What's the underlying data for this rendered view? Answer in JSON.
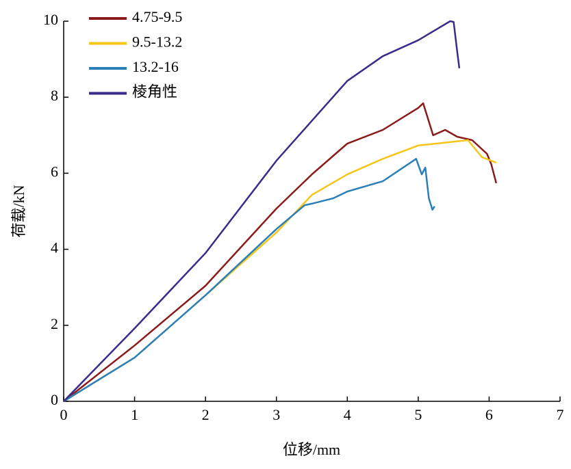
{
  "chart_data": {
    "type": "line",
    "x_label": "位移/mm",
    "y_label": "荷载/kN",
    "xlim": [
      0,
      7
    ],
    "xticks": [
      0,
      1,
      2,
      3,
      4,
      5,
      6,
      7
    ],
    "ylim": [
      0,
      10
    ],
    "yticks": [
      0,
      2,
      4,
      6,
      8,
      10
    ],
    "legend": "top-left",
    "series": [
      {
        "name": "4.75-9.5",
        "color": "#8b1a1a",
        "x": [
          0,
          1,
          2,
          3,
          3.5,
          4,
          4.5,
          5,
          5.07,
          5.21,
          5.38,
          5.55,
          5.76,
          5.97,
          6.03,
          6.1
        ],
        "values": [
          0,
          1.47,
          3.04,
          5.07,
          5.97,
          6.78,
          7.14,
          7.72,
          7.84,
          7.0,
          7.14,
          6.96,
          6.87,
          6.51,
          6.24,
          5.74
        ]
      },
      {
        "name": "9.5-13.2",
        "color": "#f5c518",
        "x": [
          0,
          1,
          2,
          3,
          3.5,
          4,
          4.5,
          5,
          5.5,
          5.7,
          5.9,
          6.1
        ],
        "values": [
          0,
          1.15,
          2.79,
          4.44,
          5.43,
          5.97,
          6.38,
          6.73,
          6.83,
          6.87,
          6.42,
          6.28
        ]
      },
      {
        "name": "13.2-16",
        "color": "#2a7fb8",
        "x": [
          0,
          1,
          2,
          3,
          3.4,
          3.5,
          3.8,
          4,
          4.5,
          4.97,
          5.05,
          5.1,
          5.15,
          5.2,
          5.23
        ],
        "values": [
          0,
          1.15,
          2.79,
          4.53,
          5.16,
          5.2,
          5.34,
          5.52,
          5.79,
          6.38,
          5.97,
          6.15,
          5.34,
          5.04,
          5.13
        ]
      },
      {
        "name": "棱角性",
        "color": "#3b2a8a",
        "x": [
          0,
          1,
          2,
          3,
          4,
          4.5,
          5,
          5.45,
          5.5,
          5.55,
          5.58
        ],
        "values": [
          0,
          1.92,
          3.9,
          6.33,
          8.43,
          9.08,
          9.5,
          10.0,
          9.98,
          9.2,
          8.76
        ]
      }
    ]
  }
}
